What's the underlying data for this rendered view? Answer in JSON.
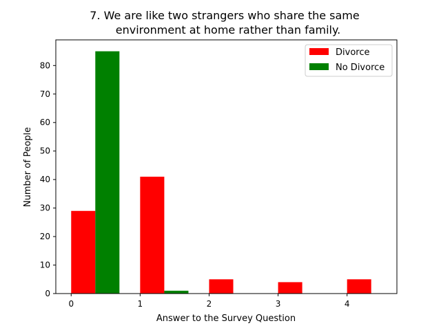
{
  "chart_data": {
    "type": "bar",
    "title_lines": [
      "7. We are like two strangers who share the same",
      "environment at home rather than family."
    ],
    "xlabel": "Answer to the Survey Question",
    "ylabel": "Number of People",
    "categories": [
      "0",
      "1",
      "2",
      "3",
      "4"
    ],
    "series": [
      {
        "name": "Divorce",
        "color": "#ff0000",
        "values": [
          29,
          41,
          5,
          4,
          5
        ]
      },
      {
        "name": "No Divorce",
        "color": "#008000",
        "values": [
          85,
          1,
          0,
          0,
          0
        ]
      }
    ],
    "ylim": [
      0,
      89
    ],
    "yticks": [
      0,
      10,
      20,
      30,
      40,
      50,
      60,
      70,
      80
    ],
    "grid": false,
    "legend_position": "top-right"
  }
}
